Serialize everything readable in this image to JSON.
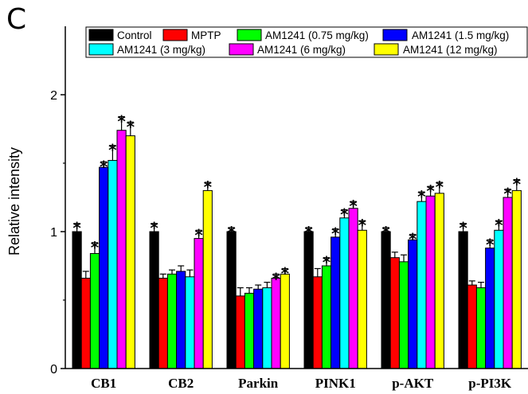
{
  "panel_letter": "C",
  "chart_data": {
    "type": "bar",
    "title": "",
    "xlabel": "",
    "ylabel": "Relative intensity",
    "ylim": [
      0,
      2.5
    ],
    "yticks": [
      "0",
      "1",
      "2"
    ],
    "grid": false,
    "legend_position": "top",
    "categories": [
      "CB1",
      "CB2",
      "Parkin",
      "PINK1",
      "p-AKT",
      "p-PI3K"
    ],
    "series": [
      {
        "name": "Control",
        "color": "#000000",
        "values": [
          1.0,
          1.0,
          1.0,
          1.0,
          1.0,
          1.0
        ],
        "errors": [
          0.06,
          0.06,
          0.03,
          0.03,
          0.03,
          0.06
        ],
        "stars": [
          true,
          true,
          true,
          true,
          true,
          true
        ]
      },
      {
        "name": "MPTP",
        "color": "#ff0000",
        "values": [
          0.66,
          0.66,
          0.53,
          0.67,
          0.81,
          0.61
        ],
        "errors": [
          0.05,
          0.03,
          0.06,
          0.06,
          0.04,
          0.03
        ],
        "stars": [
          false,
          false,
          false,
          false,
          false,
          false
        ]
      },
      {
        "name": "AM1241 (0.75 mg/kg)",
        "color": "#00ff00",
        "values": [
          0.84,
          0.69,
          0.55,
          0.75,
          0.78,
          0.59
        ],
        "errors": [
          0.08,
          0.03,
          0.04,
          0.06,
          0.05,
          0.04
        ],
        "stars": [
          true,
          false,
          false,
          true,
          false,
          false
        ]
      },
      {
        "name": "AM1241 (1.5 mg/kg)",
        "color": "#0000ff",
        "values": [
          1.47,
          0.71,
          0.58,
          0.96,
          0.94,
          0.88
        ],
        "errors": [
          0.04,
          0.04,
          0.03,
          0.06,
          0.04,
          0.06
        ],
        "stars": [
          true,
          false,
          false,
          true,
          true,
          true
        ]
      },
      {
        "name": "AM1241 (3 mg/kg)",
        "color": "#00ffff",
        "values": [
          1.52,
          0.67,
          0.59,
          1.1,
          1.22,
          1.01
        ],
        "errors": [
          0.11,
          0.05,
          0.04,
          0.06,
          0.07,
          0.07
        ],
        "stars": [
          true,
          false,
          false,
          true,
          true,
          true
        ]
      },
      {
        "name": "AM1241 (6 mg/kg)",
        "color": "#ff00ff",
        "values": [
          1.74,
          0.95,
          0.66,
          1.17,
          1.26,
          1.25
        ],
        "errors": [
          0.1,
          0.06,
          0.03,
          0.05,
          0.07,
          0.06
        ],
        "stars": [
          true,
          true,
          true,
          true,
          true,
          true
        ]
      },
      {
        "name": "AM1241 (12 mg/kg)",
        "color": "#ffff00",
        "values": [
          1.7,
          1.3,
          0.69,
          1.01,
          1.28,
          1.3
        ],
        "errors": [
          0.1,
          0.06,
          0.04,
          0.07,
          0.08,
          0.08
        ],
        "stars": [
          true,
          true,
          true,
          true,
          true,
          true
        ]
      }
    ],
    "star_label": "*"
  }
}
